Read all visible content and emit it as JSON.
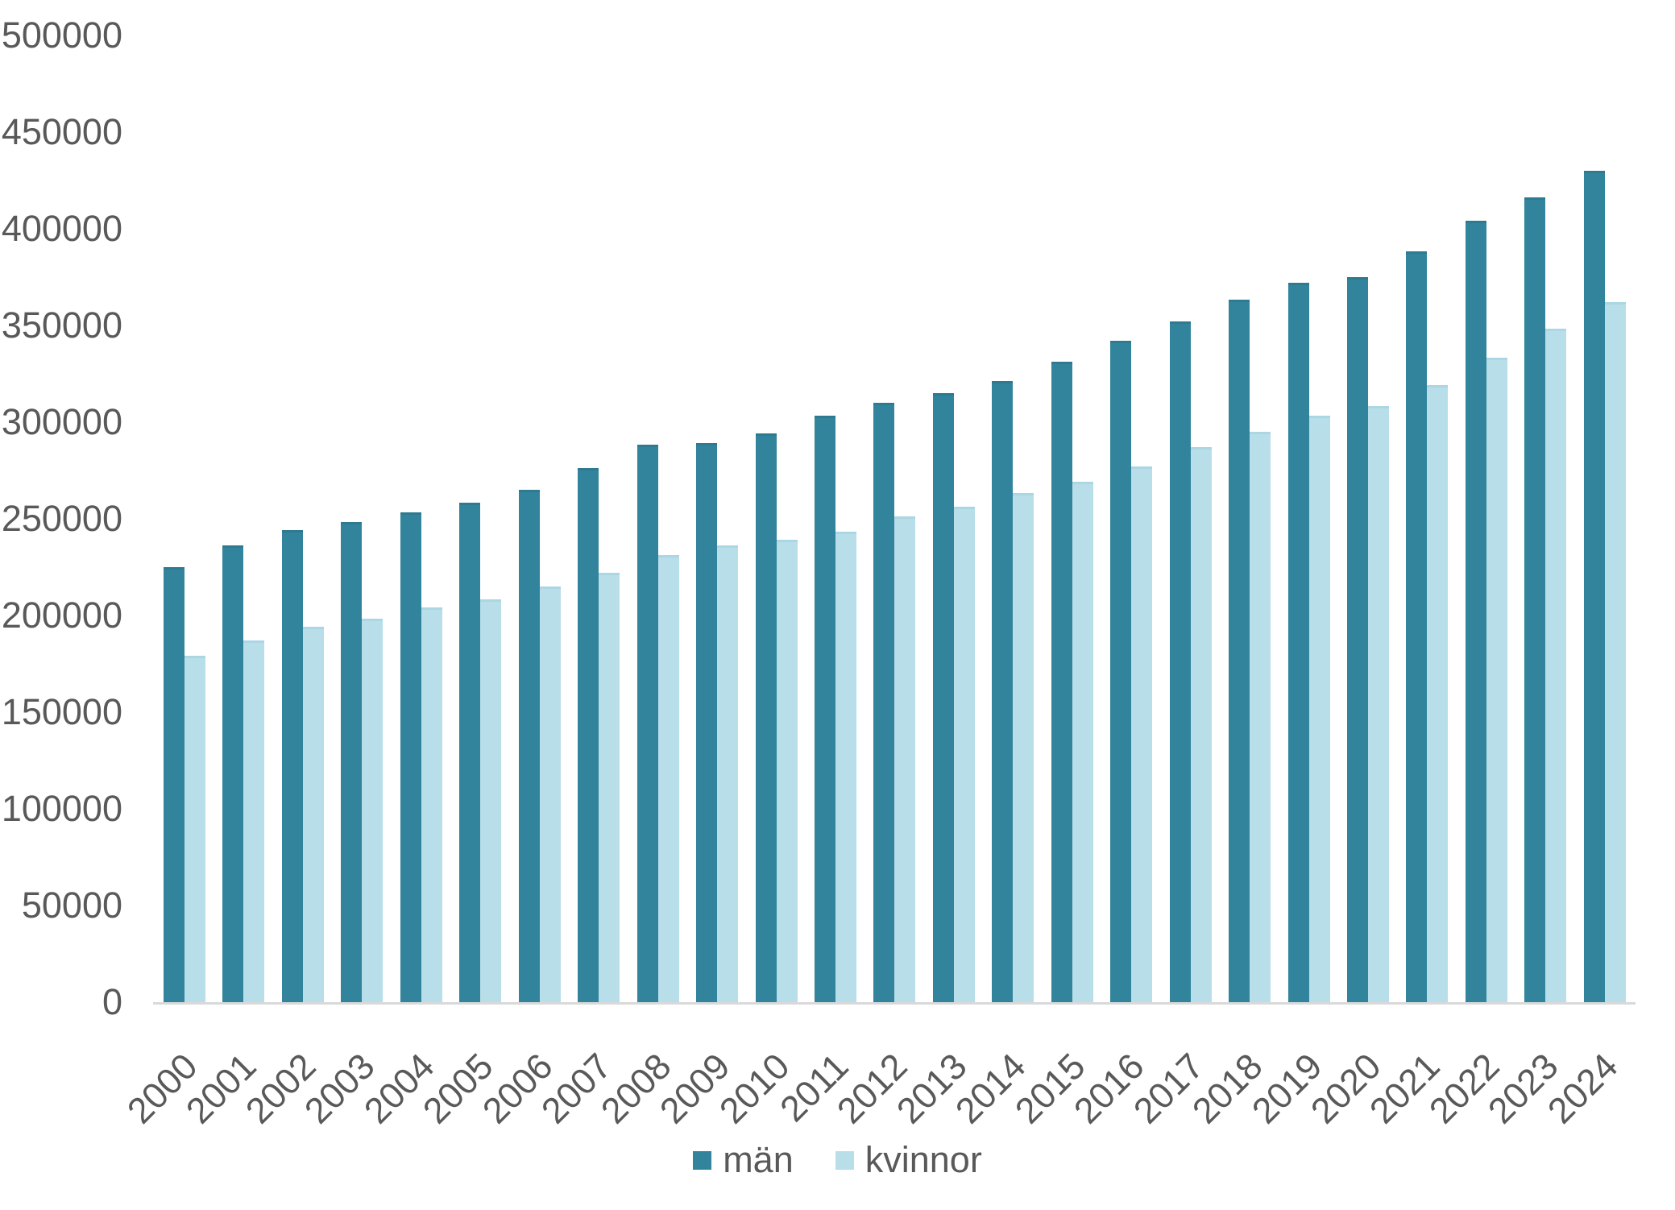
{
  "chart_data": {
    "type": "bar",
    "title": "",
    "xlabel": "",
    "ylabel": "",
    "categories": [
      2000,
      2001,
      2002,
      2003,
      2004,
      2005,
      2006,
      2007,
      2008,
      2009,
      2010,
      2011,
      2012,
      2013,
      2014,
      2015,
      2016,
      2017,
      2018,
      2019,
      2020,
      2021,
      2022,
      2023,
      2024
    ],
    "series": [
      {
        "name": "män",
        "color": "#31849C",
        "values": [
          226000,
          237000,
          245000,
          249000,
          254000,
          259000,
          266000,
          277000,
          289000,
          290000,
          295000,
          304000,
          311000,
          316000,
          322000,
          332000,
          343000,
          353000,
          364000,
          373000,
          376000,
          389000,
          405000,
          417000,
          431000
        ]
      },
      {
        "name": "kvinnor",
        "color": "#B8DEE9",
        "values": [
          180000,
          188000,
          195000,
          199000,
          205000,
          209000,
          216000,
          223000,
          232000,
          237000,
          240000,
          244000,
          252000,
          257000,
          264000,
          270000,
          278000,
          288000,
          296000,
          304000,
          309000,
          320000,
          334000,
          349000,
          363000
        ]
      }
    ],
    "ylim": [
      0,
      500000
    ],
    "ytick_step": 50000,
    "yticks": [
      0,
      50000,
      100000,
      150000,
      200000,
      250000,
      300000,
      350000,
      400000,
      450000,
      500000
    ],
    "grid": false,
    "legend_position": "bottom",
    "axis_line_color": "#D9D9D9",
    "tick_label_color": "#595959"
  },
  "legend": {
    "items": [
      {
        "label": "män"
      },
      {
        "label": "kvinnor"
      }
    ]
  }
}
